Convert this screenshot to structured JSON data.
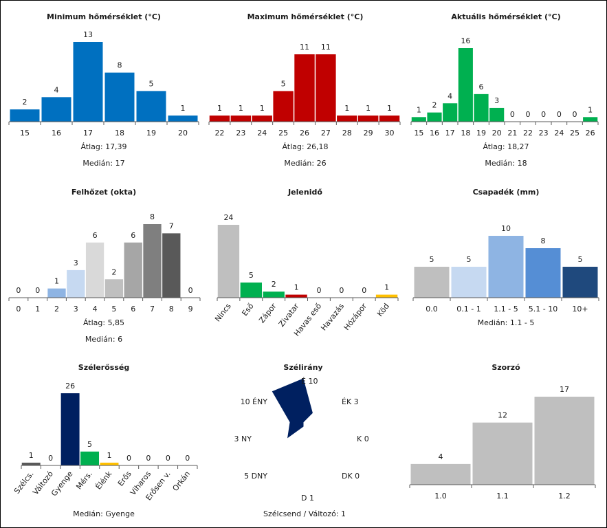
{
  "chart_data": [
    {
      "id": "tmin",
      "type": "bar",
      "title": "Minimum hőmérséklet (°C)",
      "categories": [
        "15",
        "16",
        "17",
        "18",
        "19",
        "20"
      ],
      "values": [
        2,
        4,
        13,
        8,
        5,
        1
      ],
      "colors": [
        "#0070c0",
        "#0070c0",
        "#0070c0",
        "#0070c0",
        "#0070c0",
        "#0070c0"
      ],
      "ylim": [
        0,
        13
      ],
      "stats": [
        {
          "label": "Átlag:",
          "value": "17,39"
        },
        {
          "label": "Medián:",
          "value": "17"
        }
      ]
    },
    {
      "id": "tmax",
      "type": "bar",
      "title": "Maximum hőmérséklet (°C)",
      "categories": [
        "22",
        "23",
        "24",
        "25",
        "26",
        "27",
        "28",
        "29",
        "30"
      ],
      "values": [
        1,
        1,
        1,
        5,
        11,
        11,
        1,
        1,
        1
      ],
      "colors": [
        "#c00000",
        "#c00000",
        "#c00000",
        "#c00000",
        "#c00000",
        "#c00000",
        "#c00000",
        "#c00000",
        "#c00000"
      ],
      "ylim": [
        0,
        11
      ],
      "stats": [
        {
          "label": "Átlag:",
          "value": "26,18"
        },
        {
          "label": "Medián:",
          "value": "26"
        }
      ]
    },
    {
      "id": "tcur",
      "type": "bar",
      "title": "Aktuális hőmérséklet (°C)",
      "categories": [
        "15",
        "16",
        "17",
        "18",
        "19",
        "20",
        "21",
        "22",
        "23",
        "24",
        "25",
        "26"
      ],
      "values": [
        1,
        2,
        4,
        16,
        6,
        3,
        0,
        0,
        0,
        0,
        0,
        1
      ],
      "colors": [
        "#00b050",
        "#00b050",
        "#00b050",
        "#00b050",
        "#00b050",
        "#00b050",
        "#00b050",
        "#00b050",
        "#00b050",
        "#00b050",
        "#00b050",
        "#00b050"
      ],
      "ylim": [
        0,
        16
      ],
      "stats": [
        {
          "label": "Átlag:",
          "value": "18,27"
        },
        {
          "label": "Medián:",
          "value": "18"
        }
      ]
    },
    {
      "id": "cloud",
      "type": "bar",
      "title": "Felhőzet (okta)",
      "categories": [
        "0",
        "1",
        "2",
        "3",
        "4",
        "5",
        "6",
        "7",
        "8",
        "9"
      ],
      "values": [
        0,
        0,
        1,
        3,
        6,
        2,
        6,
        8,
        7,
        0
      ],
      "colors": [
        "#ffffff",
        "#ffffff",
        "#8eb4e3",
        "#c6d9f1",
        "#d9d9d9",
        "#bfbfbf",
        "#a6a6a6",
        "#7f7f7f",
        "#595959",
        "#ffffff"
      ],
      "ylim": [
        0,
        8
      ],
      "stats": [
        {
          "label": "Átlag:",
          "value": "5,85"
        },
        {
          "label": "Medián:",
          "value": "6"
        }
      ]
    },
    {
      "id": "wx",
      "type": "bar",
      "title": "Jelenidő",
      "categories": [
        "Nincs",
        "Eső",
        "Zápor",
        "Zivatar",
        "Havas eső",
        "Havazás",
        "Hózápor",
        "Köd"
      ],
      "values": [
        24,
        5,
        2,
        1,
        0,
        0,
        0,
        1
      ],
      "colors": [
        "#bfbfbf",
        "#00b050",
        "#00b050",
        "#c00000",
        "#bfbfbf",
        "#bfbfbf",
        "#bfbfbf",
        "#ffc000"
      ],
      "ylim": [
        0,
        24
      ],
      "stats": []
    },
    {
      "id": "precip",
      "type": "bar",
      "title": "Csapadék (mm)",
      "categories": [
        "0.0",
        "0.1 - 1",
        "1.1 - 5",
        "5.1 - 10",
        "10+"
      ],
      "values": [
        5,
        5,
        10,
        8,
        5
      ],
      "colors": [
        "#bfbfbf",
        "#c6d9f1",
        "#8eb4e3",
        "#558ed5",
        "#1f497d"
      ],
      "ylim": [
        0,
        10
      ],
      "stats": [
        {
          "label": "Medián:",
          "value": "1.1 - 5"
        }
      ]
    },
    {
      "id": "wind",
      "type": "bar",
      "title": "Szélerősség",
      "categories": [
        "Szélcs.",
        "Változó",
        "Gyenge",
        "Mérs.",
        "Élénk",
        "Erős",
        "Viharos",
        "Erősen v.",
        "Orkán"
      ],
      "values": [
        1,
        0,
        26,
        5,
        1,
        0,
        0,
        0,
        0
      ],
      "colors": [
        "#595959",
        "#bfbfbf",
        "#002060",
        "#00b050",
        "#ffc000",
        "#bfbfbf",
        "#bfbfbf",
        "#bfbfbf",
        "#bfbfbf"
      ],
      "ylim": [
        0,
        26
      ],
      "stats": [
        {
          "label": "Medián:",
          "value": "Gyenge"
        }
      ]
    },
    {
      "id": "winddir",
      "type": "radar",
      "title": "Szélirány",
      "directions": [
        "É",
        "ÉK",
        "K",
        "DK",
        "D",
        "DNY",
        "NY",
        "ÉNY"
      ],
      "values": [
        10,
        3,
        0,
        0,
        1,
        5,
        3,
        10
      ],
      "rmax": 10,
      "color": "#002060",
      "stats": [
        {
          "label": "Szélcsend / Változó:",
          "value": "1"
        }
      ]
    },
    {
      "id": "mult",
      "type": "bar",
      "title": "Szorzó",
      "categories": [
        "1.0",
        "1.1",
        "1.2"
      ],
      "values": [
        4,
        12,
        17
      ],
      "colors": [
        "#bfbfbf",
        "#bfbfbf",
        "#bfbfbf"
      ],
      "ylim": [
        0,
        17
      ],
      "stats": []
    }
  ]
}
